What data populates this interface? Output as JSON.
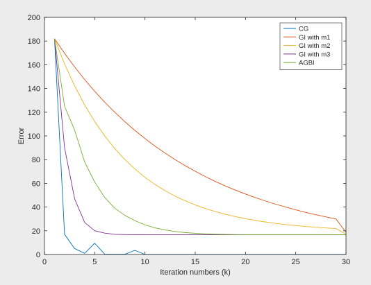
{
  "chart_data": {
    "type": "line",
    "xlabel": "Iteration numbers (k)",
    "ylabel": "Error",
    "xlim": [
      0,
      30
    ],
    "ylim": [
      0,
      200
    ],
    "xticks": [
      "0",
      "5",
      "10",
      "15",
      "20",
      "25",
      "30"
    ],
    "yticks": [
      "0",
      "20",
      "40",
      "60",
      "80",
      "100",
      "120",
      "140",
      "160",
      "180",
      "200"
    ],
    "grid": false,
    "legend_position": "top-right",
    "series": [
      {
        "name": "CG",
        "color": "#0072BD",
        "x": [
          1,
          2,
          3,
          4,
          5,
          6,
          7,
          8,
          9,
          10,
          11,
          12,
          13,
          14,
          15,
          16,
          17,
          18,
          19,
          20,
          21,
          22,
          23,
          24,
          25,
          26,
          27,
          28,
          29,
          30
        ],
        "y": [
          182,
          17,
          5,
          1,
          9.5,
          0.2,
          0.2,
          0.2,
          3.5,
          0,
          0,
          0,
          0,
          0,
          0,
          0,
          0,
          0,
          0,
          0,
          0,
          0,
          0,
          0,
          0,
          0,
          0,
          0,
          0,
          0
        ]
      },
      {
        "name": "GI with m1",
        "color": "#D95319",
        "x": [
          1,
          2,
          3,
          4,
          5,
          6,
          7,
          8,
          9,
          10,
          11,
          12,
          13,
          14,
          15,
          16,
          17,
          18,
          19,
          20,
          21,
          22,
          23,
          24,
          25,
          26,
          27,
          28,
          29,
          30
        ],
        "y": [
          182,
          169.7,
          158.2,
          147.5,
          137.6,
          128.4,
          119.9,
          112.0,
          104.6,
          97.8,
          91.4,
          85.5,
          80.0,
          74.9,
          70.2,
          65.7,
          61.6,
          57.8,
          54.3,
          51.0,
          47.9,
          45.1,
          42.4,
          40.0,
          37.7,
          35.5,
          33.5,
          31.7,
          30.0,
          18.7
        ]
      },
      {
        "name": "GI with m2",
        "color": "#EDB120",
        "x": [
          1,
          2,
          3,
          4,
          5,
          6,
          7,
          8,
          9,
          10,
          11,
          12,
          13,
          14,
          15,
          16,
          17,
          18,
          19,
          20,
          21,
          22,
          23,
          24,
          25,
          26,
          27,
          28,
          29,
          30
        ],
        "y": [
          182,
          160.7,
          142.2,
          126.1,
          112.1,
          99.9,
          89.3,
          80.1,
          72.1,
          65.1,
          59.1,
          53.8,
          49.2,
          45.3,
          41.8,
          38.8,
          36.2,
          33.9,
          31.9,
          30.2,
          28.7,
          27.4,
          26.2,
          25.2,
          24.4,
          23.6,
          23.0,
          22.4,
          21.9,
          17.1
        ]
      },
      {
        "name": "GI with m3",
        "color": "#7E2F8E",
        "x": [
          1,
          2,
          3,
          4,
          5,
          6,
          7,
          8,
          9,
          10,
          11,
          12,
          13,
          14,
          15,
          16,
          17,
          18,
          19,
          20,
          21,
          22,
          23,
          24,
          25,
          26,
          27,
          28,
          29,
          30
        ],
        "y": [
          182,
          90,
          47,
          27,
          20,
          18,
          17,
          16.8,
          16.7,
          16.6,
          16.6,
          16.6,
          16.6,
          16.6,
          16.6,
          16.6,
          16.6,
          16.6,
          16.6,
          16.6,
          16.6,
          16.6,
          16.6,
          16.6,
          16.6,
          16.6,
          16.6,
          16.6,
          16.6,
          16.6
        ]
      },
      {
        "name": "AGBI",
        "color": "#77AC30",
        "x": [
          1,
          2,
          3,
          4,
          5,
          6,
          7,
          8,
          9,
          10,
          11,
          12,
          13,
          14,
          15,
          16,
          17,
          18,
          19,
          20,
          21,
          22,
          23,
          24,
          25,
          26,
          27,
          28,
          29,
          30
        ],
        "y": [
          182,
          125,
          105,
          78,
          61,
          48,
          39,
          33,
          28.5,
          25,
          22.5,
          20.7,
          19.4,
          18.5,
          17.9,
          17.4,
          17.1,
          16.9,
          16.8,
          16.7,
          16.6,
          16.6,
          16.6,
          16.6,
          16.6,
          16.6,
          16.6,
          16.6,
          16.6,
          16.6
        ]
      }
    ]
  }
}
